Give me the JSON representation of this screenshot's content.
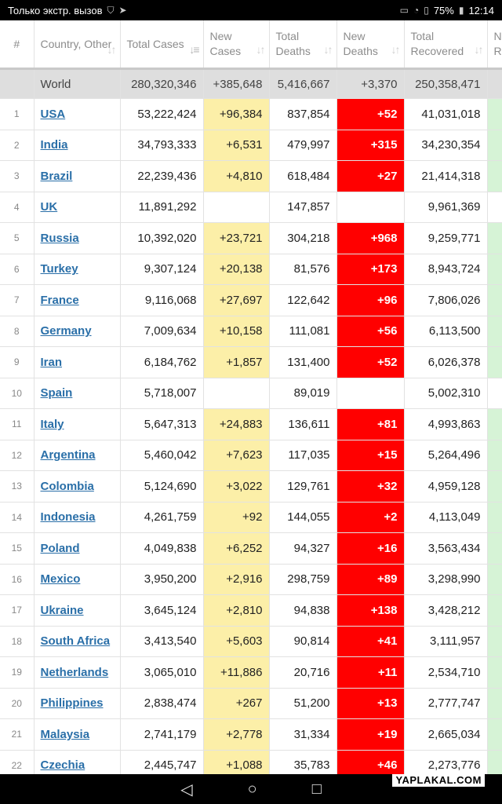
{
  "status_bar": {
    "left_text": "Только экстр. вызов",
    "battery": "75%",
    "time": "12:14"
  },
  "table": {
    "headers": [
      "#",
      "Country, Other",
      "Total Cases",
      "New Cases",
      "Total Deaths",
      "New Deaths",
      "Total Recovered",
      "New Re"
    ],
    "world": {
      "country": "World",
      "total_cases": "280,320,346",
      "new_cases": "+385,648",
      "total_deaths": "5,416,667",
      "new_deaths": "+3,370",
      "total_recovered": "250,358,471"
    },
    "rows": [
      {
        "rank": "1",
        "country": "USA",
        "total_cases": "53,222,424",
        "new_cases": "+96,384",
        "total_deaths": "837,854",
        "new_deaths": "+52",
        "total_recovered": "41,031,018"
      },
      {
        "rank": "2",
        "country": "India",
        "total_cases": "34,793,333",
        "new_cases": "+6,531",
        "total_deaths": "479,997",
        "new_deaths": "+315",
        "total_recovered": "34,230,354"
      },
      {
        "rank": "3",
        "country": "Brazil",
        "total_cases": "22,239,436",
        "new_cases": "+4,810",
        "total_deaths": "618,484",
        "new_deaths": "+27",
        "total_recovered": "21,414,318"
      },
      {
        "rank": "4",
        "country": "UK",
        "total_cases": "11,891,292",
        "new_cases": "",
        "total_deaths": "147,857",
        "new_deaths": "",
        "total_recovered": "9,961,369"
      },
      {
        "rank": "5",
        "country": "Russia",
        "total_cases": "10,392,020",
        "new_cases": "+23,721",
        "total_deaths": "304,218",
        "new_deaths": "+968",
        "total_recovered": "9,259,771"
      },
      {
        "rank": "6",
        "country": "Turkey",
        "total_cases": "9,307,124",
        "new_cases": "+20,138",
        "total_deaths": "81,576",
        "new_deaths": "+173",
        "total_recovered": "8,943,724"
      },
      {
        "rank": "7",
        "country": "France",
        "total_cases": "9,116,068",
        "new_cases": "+27,697",
        "total_deaths": "122,642",
        "new_deaths": "+96",
        "total_recovered": "7,806,026"
      },
      {
        "rank": "8",
        "country": "Germany",
        "total_cases": "7,009,634",
        "new_cases": "+10,158",
        "total_deaths": "111,081",
        "new_deaths": "+56",
        "total_recovered": "6,113,500"
      },
      {
        "rank": "9",
        "country": "Iran",
        "total_cases": "6,184,762",
        "new_cases": "+1,857",
        "total_deaths": "131,400",
        "new_deaths": "+52",
        "total_recovered": "6,026,378"
      },
      {
        "rank": "10",
        "country": "Spain",
        "total_cases": "5,718,007",
        "new_cases": "",
        "total_deaths": "89,019",
        "new_deaths": "",
        "total_recovered": "5,002,310"
      },
      {
        "rank": "11",
        "country": "Italy",
        "total_cases": "5,647,313",
        "new_cases": "+24,883",
        "total_deaths": "136,611",
        "new_deaths": "+81",
        "total_recovered": "4,993,863"
      },
      {
        "rank": "12",
        "country": "Argentina",
        "total_cases": "5,460,042",
        "new_cases": "+7,623",
        "total_deaths": "117,035",
        "new_deaths": "+15",
        "total_recovered": "5,264,496"
      },
      {
        "rank": "13",
        "country": "Colombia",
        "total_cases": "5,124,690",
        "new_cases": "+3,022",
        "total_deaths": "129,761",
        "new_deaths": "+32",
        "total_recovered": "4,959,128"
      },
      {
        "rank": "14",
        "country": "Indonesia",
        "total_cases": "4,261,759",
        "new_cases": "+92",
        "total_deaths": "144,055",
        "new_deaths": "+2",
        "total_recovered": "4,113,049"
      },
      {
        "rank": "15",
        "country": "Poland",
        "total_cases": "4,049,838",
        "new_cases": "+6,252",
        "total_deaths": "94,327",
        "new_deaths": "+16",
        "total_recovered": "3,563,434"
      },
      {
        "rank": "16",
        "country": "Mexico",
        "total_cases": "3,950,200",
        "new_cases": "+2,916",
        "total_deaths": "298,759",
        "new_deaths": "+89",
        "total_recovered": "3,298,990"
      },
      {
        "rank": "17",
        "country": "Ukraine",
        "total_cases": "3,645,124",
        "new_cases": "+2,810",
        "total_deaths": "94,838",
        "new_deaths": "+138",
        "total_recovered": "3,428,212"
      },
      {
        "rank": "18",
        "country": "South Africa",
        "total_cases": "3,413,540",
        "new_cases": "+5,603",
        "total_deaths": "90,814",
        "new_deaths": "+41",
        "total_recovered": "3,111,957"
      },
      {
        "rank": "19",
        "country": "Netherlands",
        "total_cases": "3,065,010",
        "new_cases": "+11,886",
        "total_deaths": "20,716",
        "new_deaths": "+11",
        "total_recovered": "2,534,710"
      },
      {
        "rank": "20",
        "country": "Philippines",
        "total_cases": "2,838,474",
        "new_cases": "+267",
        "total_deaths": "51,200",
        "new_deaths": "+13",
        "total_recovered": "2,777,747"
      },
      {
        "rank": "21",
        "country": "Malaysia",
        "total_cases": "2,741,179",
        "new_cases": "+2,778",
        "total_deaths": "31,334",
        "new_deaths": "+19",
        "total_recovered": "2,665,034"
      },
      {
        "rank": "22",
        "country": "Czechia",
        "total_cases": "2,445,747",
        "new_cases": "+1,088",
        "total_deaths": "35,783",
        "new_deaths": "+46",
        "total_recovered": "2,273,776"
      }
    ]
  },
  "nav": {
    "back": "◁",
    "home": "○",
    "recents": "□"
  },
  "watermark": "YAPLAKAL.COM",
  "colors": {
    "new_cases_bg": "#fcefa8",
    "new_deaths_bg": "#ff0000",
    "world_bg": "#dedede",
    "link": "#2a6fa8"
  }
}
